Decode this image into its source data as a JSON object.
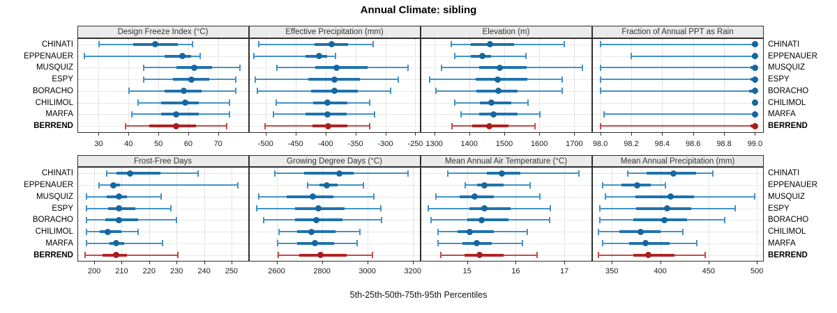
{
  "title": "Annual Climate: sibling",
  "caption": "5th-25th-50th-75th-95th Percentiles",
  "stations": [
    "CHINATI",
    "EPPENAUER",
    "MUSQUIZ",
    "ESPY",
    "BORACHO",
    "CHILIMOL",
    "MARFA",
    "BERREND"
  ],
  "highlight_station": "BERREND",
  "percentile_order": [
    "p5",
    "p25",
    "p50",
    "p75",
    "p95"
  ],
  "colors": {
    "blue_whisker": "#4292c6",
    "blue_box": "#1f72ad",
    "blue_dot": "#15679e",
    "red_whisker": "#c34a44",
    "red_box": "#b22222",
    "red_dot": "#a81d1d",
    "grid": "#c9c9c9",
    "row_line": "#d2d2d2",
    "header_bg": "#ebebeb",
    "panel_border": "#2e2e2e",
    "axis_tick": "#2e2e2e"
  },
  "chart_data": [
    {
      "type": "dotplot-percentiles",
      "title": "Design Freeze Index (°C)",
      "grid": true,
      "xlim": [
        23,
        80
      ],
      "ticks": [
        30,
        40,
        50,
        60,
        70
      ],
      "tick_labels": [
        "30",
        "40",
        "50",
        "60",
        "70"
      ],
      "series": [
        [
          30,
          41.5,
          49,
          56.5,
          61.5
        ],
        [
          25,
          52,
          58,
          61,
          64
        ],
        [
          45,
          56,
          62,
          68,
          77.5
        ],
        [
          45,
          55,
          61,
          67,
          76
        ],
        [
          40,
          52,
          58.5,
          64.5,
          76
        ],
        [
          43,
          51,
          59,
          63.5,
          74
        ],
        [
          41,
          51,
          56,
          63.5,
          74
        ],
        [
          39,
          47,
          56,
          62.5,
          73
        ]
      ]
    },
    {
      "type": "dotplot-percentiles",
      "title": "Effective Precipitation (mm)",
      "grid": true,
      "xlim": [
        -527,
        -243
      ],
      "ticks": [
        -500,
        -450,
        -400,
        -350,
        -300,
        -250
      ],
      "tick_labels": [
        "-500",
        "-450",
        "-400",
        "-350",
        "-300",
        "-250"
      ],
      "series": [
        [
          -512,
          -418,
          -390,
          -362,
          -320
        ],
        [
          -520,
          -433,
          -411,
          -397,
          -383
        ],
        [
          -482,
          -417,
          -381,
          -330,
          -262
        ],
        [
          -518,
          -429,
          -385,
          -343,
          -278
        ],
        [
          -514,
          -424,
          -385,
          -346,
          -291
        ],
        [
          -483,
          -421,
          -397,
          -364,
          -326
        ],
        [
          -487,
          -433,
          -397,
          -365,
          -318
        ],
        [
          -501,
          -422,
          -395,
          -364,
          -326
        ]
      ]
    },
    {
      "type": "dotplot-percentiles",
      "title": "Elevation (m)",
      "grid": true,
      "xlim": [
        1262,
        1748
      ],
      "ticks": [
        1300,
        1400,
        1500,
        1600,
        1700
      ],
      "tick_labels": [
        "1300",
        "1400",
        "1500",
        "1600",
        "1700"
      ],
      "series": [
        [
          1348,
          1405,
          1460,
          1527,
          1672
        ],
        [
          1357,
          1405,
          1437,
          1462,
          1563
        ],
        [
          1320,
          1428,
          1488,
          1563,
          1725
        ],
        [
          1285,
          1418,
          1482,
          1565,
          1667
        ],
        [
          1303,
          1420,
          1483,
          1537,
          1667
        ],
        [
          1358,
          1430,
          1463,
          1520,
          1568
        ],
        [
          1375,
          1428,
          1470,
          1537,
          1602
        ],
        [
          1350,
          1408,
          1457,
          1512,
          1588
        ]
      ]
    },
    {
      "type": "dotplot-percentiles",
      "title": "Fraction of Annual PPT as Rain",
      "grid": true,
      "xlim": [
        97.95,
        99.05
      ],
      "ticks": [
        98.0,
        98.2,
        98.4,
        98.6,
        98.8,
        99.0
      ],
      "tick_labels": [
        "98.0",
        "98.2",
        "98.4",
        "98.6",
        "98.8",
        "99.0"
      ],
      "series": [
        [
          98.0,
          98.98,
          99.0,
          99.0,
          99.0
        ],
        [
          98.2,
          98.98,
          99.0,
          99.0,
          99.0
        ],
        [
          98.0,
          98.97,
          99.0,
          99.0,
          99.0
        ],
        [
          98.0,
          98.97,
          99.0,
          99.0,
          99.0
        ],
        [
          98.0,
          98.96,
          99.0,
          99.0,
          99.0
        ],
        [
          98.99,
          99.0,
          99.0,
          99.0,
          99.0
        ],
        [
          98.02,
          98.99,
          99.0,
          99.0,
          99.0
        ],
        [
          98.0,
          98.97,
          99.0,
          99.0,
          99.0
        ]
      ]
    },
    {
      "type": "dotplot-percentiles",
      "title": "Frost-Free Days",
      "grid": true,
      "xlim": [
        194,
        256
      ],
      "ticks": [
        200,
        210,
        220,
        230,
        240,
        250
      ],
      "tick_labels": [
        "200",
        "210",
        "220",
        "230",
        "240",
        "250"
      ],
      "series": [
        [
          204.5,
          208,
          213,
          224,
          238
        ],
        [
          201.5,
          206,
          207,
          209.5,
          252.5
        ],
        [
          197,
          204.5,
          209,
          212,
          224.5
        ],
        [
          197,
          205,
          209,
          215,
          228
        ],
        [
          197,
          204,
          209,
          216,
          230
        ],
        [
          197,
          202,
          205,
          210,
          216
        ],
        [
          197,
          205.5,
          208,
          211,
          225
        ],
        [
          196.5,
          203,
          208,
          212,
          230.5
        ]
      ]
    },
    {
      "type": "dotplot-percentiles",
      "title": "Growing Degree Days (°C)",
      "grid": true,
      "xlim": [
        2480,
        3230
      ],
      "ticks": [
        2600,
        2800,
        3000,
        3200
      ],
      "tick_labels": [
        "2600",
        "2800",
        "3000",
        "3200"
      ],
      "series": [
        [
          2590,
          2720,
          2875,
          2940,
          3180
        ],
        [
          2735,
          2790,
          2820,
          2870,
          2985
        ],
        [
          2520,
          2645,
          2760,
          2850,
          3030
        ],
        [
          2512,
          2680,
          2785,
          2900,
          3060
        ],
        [
          2543,
          2680,
          2775,
          2890,
          3065
        ],
        [
          2610,
          2690,
          2755,
          2860,
          2970
        ],
        [
          2602,
          2690,
          2770,
          2855,
          2955
        ],
        [
          2607,
          2700,
          2795,
          2910,
          3025
        ]
      ]
    },
    {
      "type": "dotplot-percentiles",
      "title": "Mean Annual Air Temperature (°C)",
      "grid": true,
      "xlim": [
        14.05,
        17.55
      ],
      "ticks": [
        15,
        16,
        17
      ],
      "tick_labels": [
        "15",
        "16",
        "17"
      ],
      "series": [
        [
          14.6,
          15.4,
          15.72,
          16.1,
          17.3
        ],
        [
          14.95,
          15.2,
          15.35,
          15.75,
          16.3
        ],
        [
          14.35,
          14.85,
          15.15,
          15.55,
          16.5
        ],
        [
          14.2,
          15.05,
          15.35,
          15.9,
          16.72
        ],
        [
          14.25,
          15.0,
          15.3,
          15.85,
          16.7
        ],
        [
          14.4,
          14.8,
          15.05,
          15.55,
          16.25
        ],
        [
          14.4,
          14.9,
          15.2,
          15.5,
          16.15
        ],
        [
          14.45,
          14.95,
          15.25,
          15.75,
          16.45
        ]
      ]
    },
    {
      "type": "dotplot-percentiles",
      "title": "Mean Annual Precipitation (mm)",
      "grid": true,
      "xlim": [
        330,
        506
      ],
      "ticks": [
        350,
        400,
        450,
        500
      ],
      "tick_labels": [
        "350",
        "400",
        "450",
        "500"
      ],
      "series": [
        [
          366,
          386,
          414,
          437,
          455
        ],
        [
          340,
          360,
          376,
          390,
          406
        ],
        [
          343,
          374,
          411,
          435,
          498
        ],
        [
          337,
          375,
          407,
          432,
          478
        ],
        [
          337,
          372,
          404,
          428,
          467
        ],
        [
          336,
          358,
          380,
          400,
          424
        ],
        [
          340,
          368,
          385,
          410,
          438
        ],
        [
          336,
          372,
          388,
          415,
          447
        ]
      ]
    }
  ]
}
